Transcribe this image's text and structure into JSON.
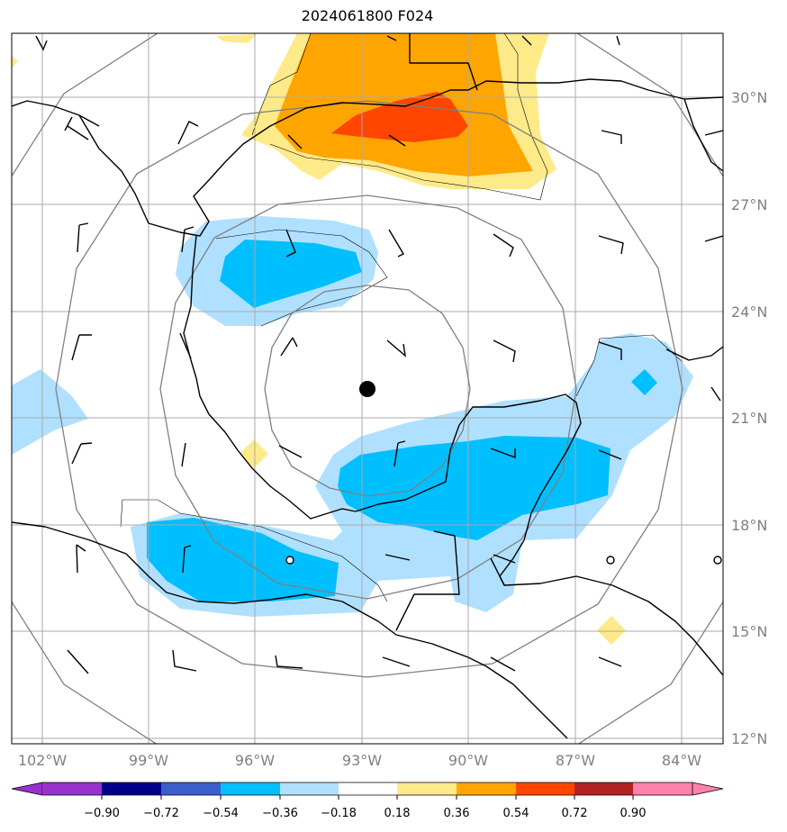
{
  "title": "2024061800 F024",
  "map": {
    "lon_range": [
      -103,
      -82.5
    ],
    "lat_range": [
      12,
      32.5
    ],
    "lon_ticks": [
      {
        "value": -102,
        "label": "102°W"
      },
      {
        "value": -99,
        "label": "99°W"
      },
      {
        "value": -96,
        "label": "96°W"
      },
      {
        "value": -93,
        "label": "93°W"
      },
      {
        "value": -90,
        "label": "90°W"
      },
      {
        "value": -87,
        "label": "87°W"
      },
      {
        "value": -84,
        "label": "84°W"
      }
    ],
    "lat_ticks": [
      {
        "value": 30,
        "label": "30°N"
      },
      {
        "value": 27,
        "label": "27°N"
      },
      {
        "value": 24,
        "label": "24°N"
      },
      {
        "value": 21,
        "label": "21°N"
      },
      {
        "value": 18,
        "label": "18°N"
      },
      {
        "value": 15,
        "label": "15°N"
      },
      {
        "value": 12,
        "label": "12°N"
      }
    ],
    "center": {
      "lon": -92.8,
      "lat": 21.8
    },
    "range_rings_deg": [
      2.9,
      5.9,
      8.9,
      11.8
    ],
    "grid_color": "#aaaaaa",
    "ring_color": "#808080",
    "coast_color": "#000000"
  },
  "colorbar": {
    "tick_labels": [
      "−0.90",
      "−0.72",
      "−0.54",
      "−0.36",
      "−0.18",
      "0.18",
      "0.36",
      "0.54",
      "0.72",
      "0.90"
    ],
    "colors": [
      "#9932cc",
      "#00008b",
      "#3a5fcd",
      "#00bfff",
      "#b0e0ff",
      "#ffffff",
      "#ffea8a",
      "#ffa500",
      "#ff4500",
      "#b22222",
      "#ff82ab"
    ]
  },
  "layers": {
    "shading": "anomaly contours",
    "barbs": "wind barbs",
    "coastlines": "coastlines",
    "center_marker": "storm center"
  }
}
